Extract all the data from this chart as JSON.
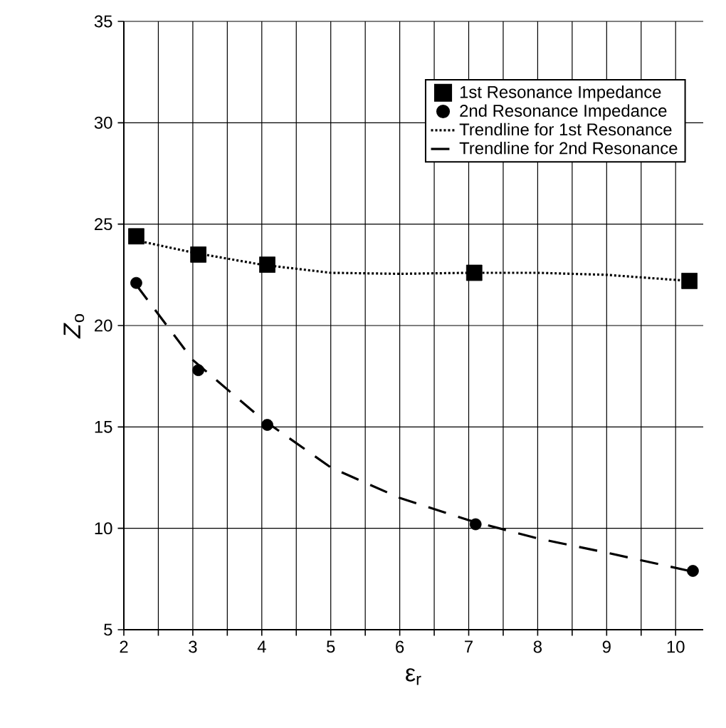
{
  "chart_data": {
    "type": "scatter",
    "xlabel": "ε$_{r}$",
    "ylabel": "*Z*$_{o}$",
    "xlim": [
      2,
      10.4
    ],
    "ylim": [
      5,
      35
    ],
    "xticks": [
      2,
      {
        "value": 2.5,
        "label": null
      },
      3,
      {
        "value": 3.5,
        "label": null
      },
      4,
      {
        "value": 4.5,
        "label": null
      },
      5,
      {
        "value": 5.5,
        "label": null
      },
      6,
      {
        "value": 6.5,
        "label": null
      },
      7,
      {
        "value": 7.5,
        "label": null
      },
      8,
      {
        "value": 8.5,
        "label": null
      },
      9,
      {
        "value": 9.5,
        "label": null
      },
      10
    ],
    "yticks": [
      5,
      10,
      15,
      20,
      25,
      30,
      35
    ],
    "grid": true,
    "legend": "top right",
    "series": [
      {
        "name": "1st Resonance Impedance",
        "marker": "square",
        "color": "#000000",
        "x": [
          2.18,
          3.08,
          4.08,
          7.08,
          10.2
        ],
        "values": [
          24.4,
          23.5,
          23.0,
          22.6,
          22.2
        ]
      },
      {
        "name": "2nd Resonance Impedance",
        "marker": "circle",
        "color": "#000000",
        "x": [
          2.18,
          3.08,
          4.08,
          7.1,
          10.25
        ],
        "values": [
          22.1,
          17.8,
          15.1,
          10.2,
          7.9
        ]
      },
      {
        "name": "Trendline for 1st Resonance",
        "type": "line",
        "line_style": "dotted",
        "color": "#000000",
        "x": [
          2.18,
          3,
          4,
          5,
          6,
          7,
          8,
          9,
          10.2
        ],
        "values": [
          24.2,
          23.6,
          23.0,
          22.6,
          22.55,
          22.6,
          22.6,
          22.5,
          22.2
        ]
      },
      {
        "name": "Trendline for 2nd Resonance",
        "type": "line",
        "line_style": "dashed",
        "color": "#000000",
        "x": [
          2.18,
          3,
          4,
          5,
          6,
          7,
          8,
          9,
          10.2
        ],
        "values": [
          22.0,
          18.3,
          15.4,
          13.0,
          11.5,
          10.4,
          9.5,
          8.8,
          7.9
        ]
      }
    ]
  }
}
